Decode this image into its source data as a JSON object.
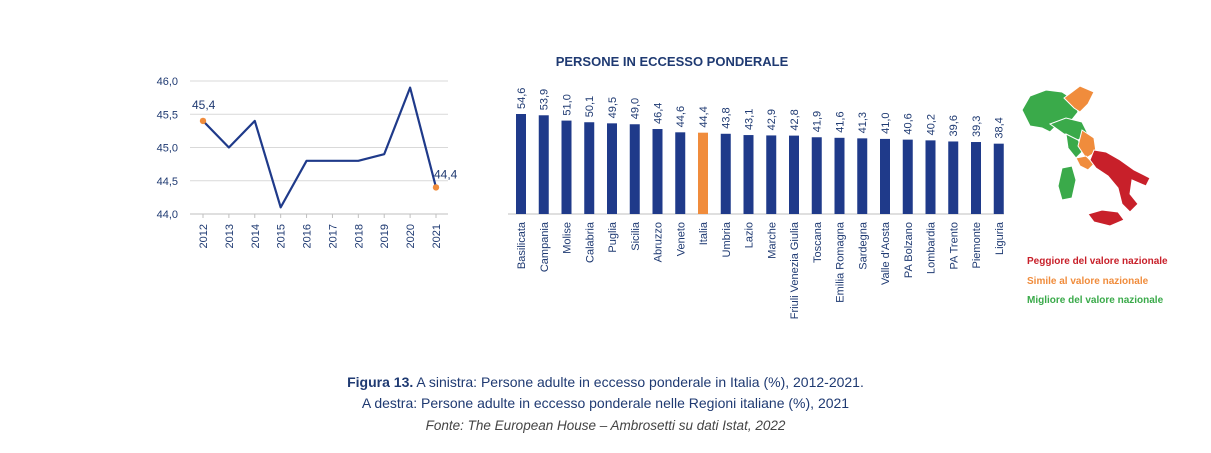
{
  "chart_data": [
    {
      "type": "line",
      "x": [
        "2012",
        "2013",
        "2014",
        "2015",
        "2016",
        "2017",
        "2018",
        "2019",
        "2020",
        "2021"
      ],
      "values": [
        45.4,
        45.0,
        45.4,
        44.1,
        44.8,
        44.8,
        44.8,
        44.9,
        45.9,
        44.4
      ],
      "labeled_points": [
        {
          "x": "2012",
          "label": "45,4"
        },
        {
          "x": "2021",
          "label": "44,4"
        }
      ],
      "ylim": [
        44.0,
        46.0
      ],
      "yticks": [
        "44,0",
        "44,5",
        "45,0",
        "45,5",
        "46,0"
      ],
      "grid": "horizontal",
      "colors": {
        "line": "#1f3a8a",
        "marker": "#f08c3c",
        "grid": "#d9d9d9"
      }
    },
    {
      "type": "bar",
      "title": "PERSONE IN ECCESSO PONDERALE",
      "categories": [
        "Basilicata",
        "Campania",
        "Molise",
        "Calabria",
        "Puglia",
        "Sicilia",
        "Abruzzo",
        "Veneto",
        "Italia",
        "Umbria",
        "Lazio",
        "Marche",
        "Friuli Venezia Giulia",
        "Toscana",
        "Emilia Romagna",
        "Sardegna",
        "Valle d'Aosta",
        "PA Bolzano",
        "Lombardia",
        "PA Trento",
        "Piemonte",
        "Liguria"
      ],
      "values": [
        54.6,
        53.9,
        51.0,
        50.1,
        49.5,
        49.0,
        46.4,
        44.6,
        44.4,
        43.8,
        43.1,
        42.9,
        42.8,
        41.9,
        41.6,
        41.3,
        41.0,
        40.6,
        40.2,
        39.6,
        39.3,
        38.4
      ],
      "labels": [
        "54,6",
        "53,9",
        "51,0",
        "50,1",
        "49,5",
        "49,0",
        "46,4",
        "44,6",
        "44,4",
        "43,8",
        "43,1",
        "42,9",
        "42,8",
        "41,9",
        "41,6",
        "41,3",
        "41,0",
        "40,6",
        "40,2",
        "39,6",
        "39,3",
        "38,4"
      ],
      "highlight": "Italia",
      "colors": {
        "bar": "#1f3a8a",
        "highlight": "#f08c3c"
      }
    }
  ],
  "map_legend": [
    {
      "label": "Peggiore del valore nazionale",
      "color": "#c8202a"
    },
    {
      "label": "Simile al valore nazionale",
      "color": "#f08c3c"
    },
    {
      "label": "Migliore del valore nazionale",
      "color": "#3aaa4a"
    }
  ],
  "caption": {
    "label": "Figura 13.",
    "line1": "A sinistra: Persone adulte in eccesso ponderale in Italia (%), 2012-2021.",
    "line2": "A destra: Persone adulte in eccesso ponderale nelle Regioni italiane (%), 2021",
    "source": "Fonte: The European House – Ambrosetti su dati Istat, 2022"
  }
}
